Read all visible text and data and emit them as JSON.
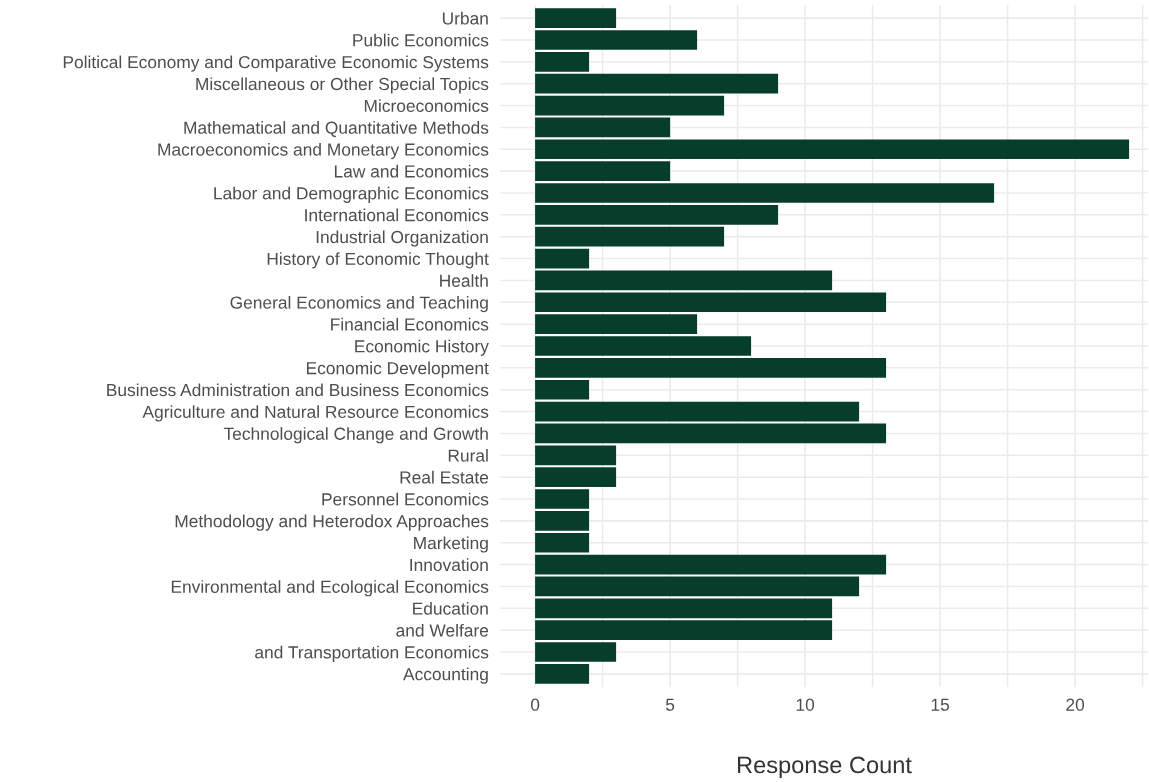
{
  "chart_data": {
    "type": "bar",
    "orientation": "horizontal",
    "xlabel": "Response Count",
    "categories": [
      "Urban",
      "Public Economics",
      "Political Economy and Comparative Economic Systems",
      "Miscellaneous or Other Special Topics",
      "Microeconomics",
      "Mathematical and Quantitative Methods",
      "Macroeconomics and Monetary Economics",
      "Law and Economics",
      "Labor and Demographic Economics",
      "International Economics",
      "Industrial Organization",
      "History of Economic Thought",
      "Health",
      "General Economics and Teaching",
      "Financial Economics",
      "Economic History",
      "Economic Development",
      "Business Administration and Business Economics",
      "Agriculture and Natural Resource Economics",
      "Technological Change and Growth",
      "Rural",
      "Real Estate",
      "Personnel Economics",
      "Methodology and Heterodox Approaches",
      "Marketing",
      "Innovation",
      "Environmental and Ecological Economics",
      "Education",
      "and Welfare",
      "and Transportation Economics",
      "Accounting"
    ],
    "values": [
      3,
      6,
      2,
      9,
      7,
      5,
      22,
      5,
      17,
      9,
      7,
      2,
      11,
      13,
      6,
      8,
      13,
      2,
      12,
      13,
      3,
      3,
      2,
      2,
      2,
      13,
      12,
      11,
      11,
      3,
      2
    ],
    "color": "#063d2b",
    "xlim": [
      -1.3,
      22.7
    ],
    "xticks": [
      0,
      {
        "value": 2.5,
        "label": null
      },
      5,
      {
        "value": 7.5,
        "label": null
      },
      10,
      {
        "value": 12.5,
        "label": null
      },
      15,
      {
        "value": 17.5,
        "label": null
      },
      20,
      {
        "value": 22.5,
        "label": null
      }
    ],
    "grid": true
  }
}
